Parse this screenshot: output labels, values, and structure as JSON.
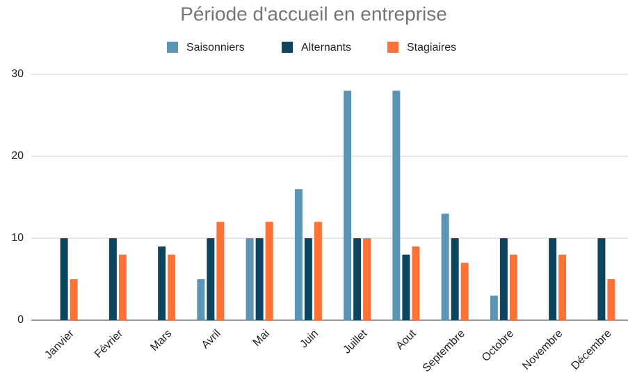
{
  "chart_data": {
    "type": "bar",
    "title": "Période d'accueil en entreprise",
    "categories": [
      "Janvier",
      "Février",
      "Mars",
      "Avril",
      "Mai",
      "Juin",
      "Juillet",
      "Aout",
      "Septembre",
      "Octobre",
      "Novembre",
      "Décembre"
    ],
    "series": [
      {
        "name": "Saisonniers",
        "color": "#5b95b5",
        "values": [
          0,
          0,
          0,
          5,
          10,
          16,
          28,
          28,
          13,
          3,
          0,
          0
        ]
      },
      {
        "name": "Alternants",
        "color": "#0b4560",
        "values": [
          10,
          10,
          9,
          10,
          10,
          10,
          10,
          8,
          10,
          10,
          10,
          10
        ]
      },
      {
        "name": "Stagiaires",
        "color": "#ff7235",
        "values": [
          5,
          8,
          8,
          12,
          12,
          12,
          10,
          9,
          7,
          8,
          8,
          5
        ]
      }
    ],
    "ylim": [
      0,
      30
    ],
    "yticks": [
      0,
      10,
      20,
      30
    ],
    "grid": true,
    "legend": "top"
  }
}
